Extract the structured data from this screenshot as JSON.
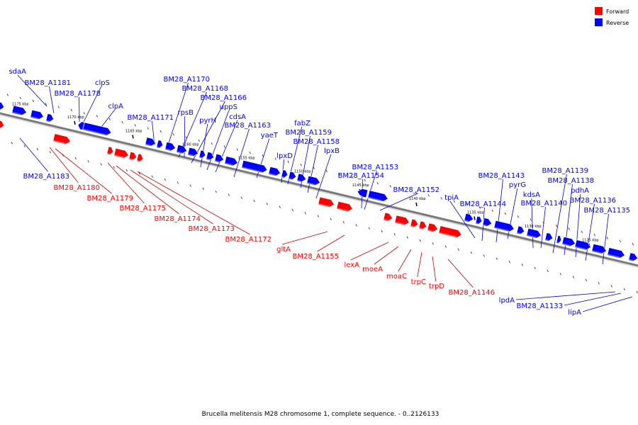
{
  "caption": "Brucella melitensis M28 chromosome 1, complete sequence. - 0..2126133",
  "legend": [
    {
      "label": "Forward",
      "color": "#ff0000"
    },
    {
      "label": "Reverse",
      "color": "#0000ff"
    }
  ],
  "colors": {
    "forward": "#ff0000",
    "reverse": "#0000ff",
    "backbone": "#7a7a7a",
    "forward_leader": "#cc0000",
    "reverse_leader": "#0000cc"
  },
  "scale": {
    "ticks": [
      "1175 kbp",
      "1170 kbp",
      "1165 kbp",
      "1160 kbp",
      "1155 kbp",
      "1150 kbp",
      "1145 kbp",
      "1140 kbp",
      "1135 kbp",
      "1130 kbp",
      "1125 kbp"
    ]
  },
  "genes": {
    "reverse": [
      "sdaA",
      "BM28_A1181",
      "BM28_A1178",
      "clpS",
      "clpA",
      "BM28_A1170",
      "BM28_A1168",
      "BM28_A1166",
      "BM28_A1171",
      "rpsB",
      "uppS",
      "pyrH",
      "cdsA",
      "BM28_A1163",
      "fabZ",
      "yaeT",
      "BM28_A1159",
      "lpxD",
      "BM28_A1158",
      "lpxB",
      "BM28_A1153",
      "BM28_A1154",
      "BM28_A1152",
      "tpiA",
      "BM28_A1143",
      "pyrG",
      "BM28_A1144",
      "kdsA",
      "BM28_A1139",
      "BM28_A1138",
      "pdhA",
      "BM28_A1140",
      "BM28_A1136",
      "BM28_A1135",
      "BM28_A1183",
      "lpdA",
      "BM28_A1133",
      "lipA"
    ],
    "forward": [
      "BM28_A1180",
      "BM28_A1179",
      "BM28_A1175",
      "BM28_A1174",
      "BM28_A1173",
      "BM28_A1172",
      "gltA",
      "BM28_A1155",
      "lexA",
      "moeA",
      "moaC",
      "trpC",
      "trpD",
      "BM28_A1146"
    ]
  }
}
